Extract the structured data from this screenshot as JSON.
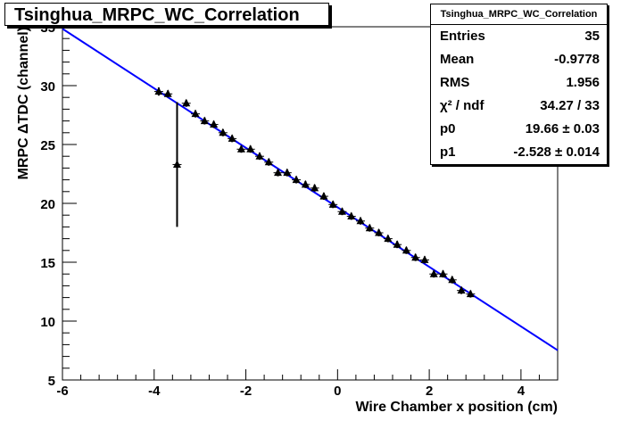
{
  "title": "Tsinghua_MRPC_WC_Correlation",
  "stats": {
    "header": "Tsinghua_MRPC_WC_Correlation",
    "rows": [
      {
        "name": "Entries",
        "value": "35"
      },
      {
        "name": "Mean",
        "value": "-0.9778"
      },
      {
        "name": "RMS",
        "value": "1.956"
      },
      {
        "name": "χ² / ndf",
        "value": "34.27 / 33"
      },
      {
        "name": "p0",
        "value": "19.66 ± 0.03"
      },
      {
        "name": "p1",
        "value": "-2.528 ± 0.014"
      }
    ]
  },
  "chart_data": {
    "type": "scatter",
    "title": "Tsinghua_MRPC_WC_Correlation",
    "xlabel": "Wire Chamber x position (cm)",
    "ylabel": "MRPC ΔTDC (channel)",
    "xlim": [
      -6,
      4.8
    ],
    "ylim": [
      5,
      35
    ],
    "xticks": [
      -6,
      -4,
      -2,
      0,
      2,
      4
    ],
    "yticks": [
      5,
      10,
      15,
      20,
      25,
      30,
      35
    ],
    "grid": false,
    "colors": {
      "fit": "#0000ff",
      "points": "#000000"
    },
    "fit": {
      "p0": 19.66,
      "p1": -2.528
    },
    "points": [
      {
        "x": -3.9,
        "y": 29.5,
        "err": 0.35
      },
      {
        "x": -3.7,
        "y": 29.3,
        "err": 0.3
      },
      {
        "x": -3.5,
        "y": 23.3,
        "err": 5.3
      },
      {
        "x": -3.3,
        "y": 28.5,
        "err": 0.3
      },
      {
        "x": -3.1,
        "y": 27.6,
        "err": 0.3
      },
      {
        "x": -2.9,
        "y": 27.0,
        "err": 0.3
      },
      {
        "x": -2.7,
        "y": 26.7,
        "err": 0.3
      },
      {
        "x": -2.5,
        "y": 26.0,
        "err": 0.3
      },
      {
        "x": -2.3,
        "y": 25.5,
        "err": 0.3
      },
      {
        "x": -2.1,
        "y": 24.6,
        "err": 0.3
      },
      {
        "x": -1.9,
        "y": 24.6,
        "err": 0.3
      },
      {
        "x": -1.7,
        "y": 24.0,
        "err": 0.3
      },
      {
        "x": -1.5,
        "y": 23.5,
        "err": 0.3
      },
      {
        "x": -1.3,
        "y": 22.6,
        "err": 0.3
      },
      {
        "x": -1.1,
        "y": 22.6,
        "err": 0.3
      },
      {
        "x": -0.9,
        "y": 22.0,
        "err": 0.3
      },
      {
        "x": -0.7,
        "y": 21.6,
        "err": 0.3
      },
      {
        "x": -0.5,
        "y": 21.3,
        "err": 0.3
      },
      {
        "x": -0.3,
        "y": 20.6,
        "err": 0.3
      },
      {
        "x": -0.1,
        "y": 19.9,
        "err": 0.3
      },
      {
        "x": 0.1,
        "y": 19.3,
        "err": 0.3
      },
      {
        "x": 0.3,
        "y": 18.9,
        "err": 0.3
      },
      {
        "x": 0.5,
        "y": 18.5,
        "err": 0.3
      },
      {
        "x": 0.7,
        "y": 17.9,
        "err": 0.3
      },
      {
        "x": 0.9,
        "y": 17.5,
        "err": 0.3
      },
      {
        "x": 1.1,
        "y": 17.0,
        "err": 0.3
      },
      {
        "x": 1.3,
        "y": 16.5,
        "err": 0.3
      },
      {
        "x": 1.5,
        "y": 16.0,
        "err": 0.3
      },
      {
        "x": 1.7,
        "y": 15.4,
        "err": 0.3
      },
      {
        "x": 1.9,
        "y": 15.2,
        "err": 0.3
      },
      {
        "x": 2.1,
        "y": 14.0,
        "err": 0.3
      },
      {
        "x": 2.3,
        "y": 14.0,
        "err": 0.3
      },
      {
        "x": 2.5,
        "y": 13.5,
        "err": 0.3
      },
      {
        "x": 2.7,
        "y": 12.6,
        "err": 0.3
      },
      {
        "x": 2.9,
        "y": 12.3,
        "err": 0.3
      }
    ]
  }
}
